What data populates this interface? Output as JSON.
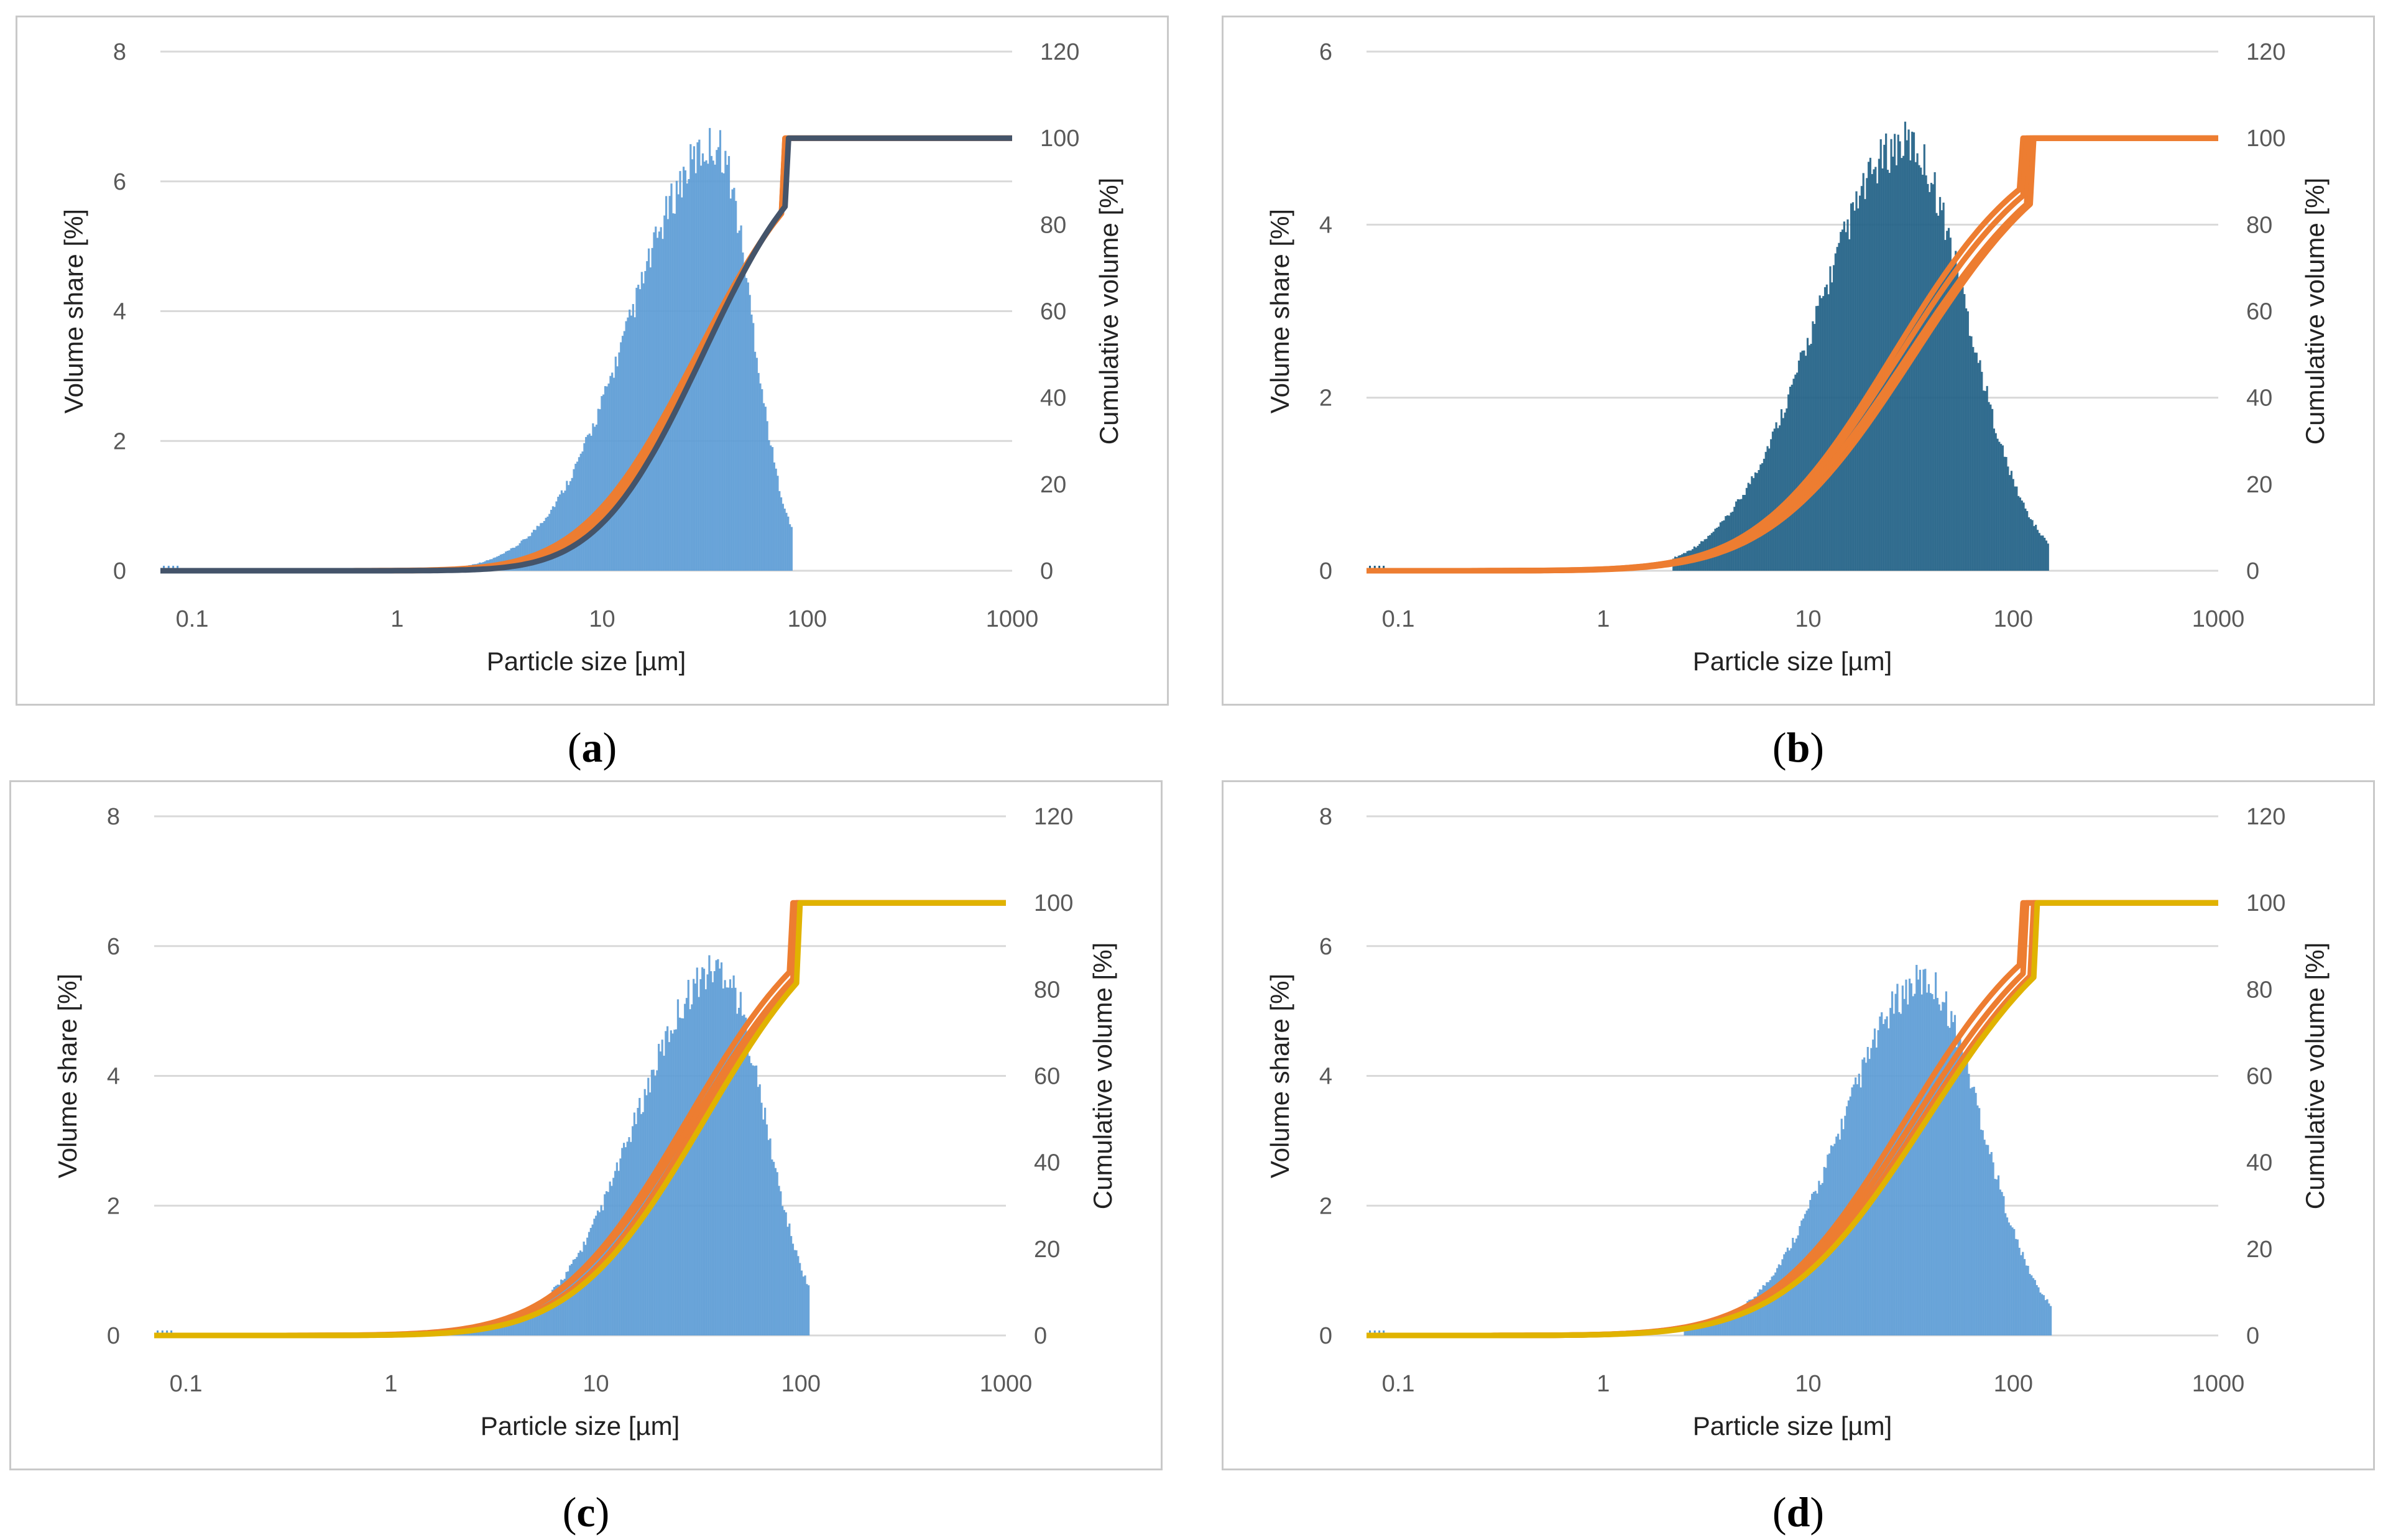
{
  "colors": {
    "bar_light": "#5b9bd5",
    "bar_dark": "#1f5f85",
    "cum_orange": "#ed7d31",
    "cum_yellow": "#e0b300",
    "cum_navy": "#44546a",
    "grid": "#d9d9d9"
  },
  "chart_data": [
    {
      "id": "a",
      "type": "bar+line",
      "caption_letter": "a",
      "xlabel": "Particle size [µm]",
      "ylabel_left": "Volume share [%]",
      "ylabel_right": "Cumulative volume [%]",
      "x_scale": "log",
      "xlim": [
        0.07,
        1000
      ],
      "x_ticks": [
        "0.1",
        "1",
        "10",
        "100",
        "1000"
      ],
      "ylim_left": [
        0,
        8
      ],
      "y_ticks_left": [
        "0",
        "2",
        "4",
        "6",
        "8"
      ],
      "ylim_right": [
        0,
        120
      ],
      "y_ticks_right": [
        "0",
        "20",
        "40",
        "60",
        "80",
        "100",
        "120"
      ],
      "distribution": {
        "mode_um": 36,
        "peak_pct": 6.9,
        "sigma_left": 0.62,
        "sigma_right": 0.26,
        "min_um": 2.0,
        "max_um": 85
      },
      "cumulative_series": [
        {
          "name": "orange-1",
          "color": "cum_orange",
          "d50_um": 30,
          "sigma": 0.42,
          "end_um": 75
        },
        {
          "name": "orange-2",
          "color": "cum_orange",
          "d50_um": 29,
          "sigma": 0.44,
          "end_um": 75
        },
        {
          "name": "navy-1",
          "color": "cum_navy",
          "d50_um": 31,
          "sigma": 0.4,
          "end_um": 78
        }
      ]
    },
    {
      "id": "b",
      "type": "bar+line",
      "caption_letter": "b",
      "xlabel": "Particle size [µm]",
      "ylabel_left": "Volume share [%]",
      "ylabel_right": "Cumulative volume [%]",
      "x_scale": "log",
      "xlim": [
        0.07,
        1000
      ],
      "x_ticks": [
        "0.1",
        "1",
        "10",
        "100",
        "1000"
      ],
      "ylim_left": [
        0,
        6
      ],
      "y_ticks_left": [
        "0",
        "2",
        "4",
        "6"
      ],
      "ylim_right": [
        0,
        120
      ],
      "y_ticks_right": [
        "0",
        "20",
        "40",
        "60",
        "80",
        "100",
        "120"
      ],
      "distribution": {
        "mode_um": 30,
        "peak_pct": 5.2,
        "sigma_left": 0.65,
        "sigma_right": 0.45,
        "min_um": 2.2,
        "max_um": 150
      },
      "cumulative_series": [
        {
          "name": "orange-1",
          "color": "cum_orange",
          "d50_um": 26,
          "sigma": 0.52,
          "end_um": 110
        },
        {
          "name": "orange-2",
          "color": "cum_orange",
          "d50_um": 28,
          "sigma": 0.54,
          "end_um": 115
        },
        {
          "name": "orange-3",
          "color": "cum_orange",
          "d50_um": 31,
          "sigma": 0.56,
          "end_um": 120
        },
        {
          "name": "orange-4",
          "color": "cum_orange",
          "d50_um": 33,
          "sigma": 0.55,
          "end_um": 125
        }
      ]
    },
    {
      "id": "c",
      "type": "bar+line",
      "caption_letter": "c",
      "xlabel": "Particle size [µm]",
      "ylabel_left": "Volume share [%]",
      "ylabel_right": "Cumulative volume [%]",
      "x_scale": "log",
      "xlim": [
        0.07,
        1000
      ],
      "x_ticks": [
        "0.1",
        "1",
        "10",
        "100",
        "1000"
      ],
      "ylim_left": [
        0,
        8
      ],
      "y_ticks_left": [
        "0",
        "2",
        "4",
        "6",
        "8"
      ],
      "ylim_right": [
        0,
        120
      ],
      "y_ticks_right": [
        "0",
        "20",
        "40",
        "60",
        "80",
        "100",
        "120"
      ],
      "distribution": {
        "mode_um": 40,
        "peak_pct": 5.95,
        "sigma_left": 0.6,
        "sigma_right": 0.33,
        "min_um": 1.5,
        "max_um": 110
      },
      "cumulative_series": [
        {
          "name": "orange-1",
          "color": "cum_orange",
          "d50_um": 28,
          "sigma": 0.5,
          "end_um": 90
        },
        {
          "name": "orange-2",
          "color": "cum_orange",
          "d50_um": 30,
          "sigma": 0.52,
          "end_um": 92
        },
        {
          "name": "orange-3",
          "color": "cum_orange",
          "d50_um": 32,
          "sigma": 0.5,
          "end_um": 95
        },
        {
          "name": "yellow-1",
          "color": "cum_yellow",
          "d50_um": 34,
          "sigma": 0.5,
          "end_um": 98
        }
      ]
    },
    {
      "id": "d",
      "type": "bar+line",
      "caption_letter": "d",
      "xlabel": "Particle size [µm]",
      "ylabel_left": "Volume share [%]",
      "ylabel_right": "Cumulative volume [%]",
      "x_scale": "log",
      "xlim": [
        0.07,
        1000
      ],
      "x_ticks": [
        "0.1",
        "1",
        "10",
        "100",
        "1000"
      ],
      "ylim_left": [
        0,
        8
      ],
      "y_ticks_left": [
        "0",
        "2",
        "4",
        "6",
        "8"
      ],
      "ylim_right": [
        0,
        120
      ],
      "y_ticks_right": [
        "0",
        "20",
        "40",
        "60",
        "80",
        "100",
        "120"
      ],
      "distribution": {
        "mode_um": 37,
        "peak_pct": 5.75,
        "sigma_left": 0.6,
        "sigma_right": 0.42,
        "min_um": 2.5,
        "max_um": 155
      },
      "cumulative_series": [
        {
          "name": "orange-1",
          "color": "cum_orange",
          "d50_um": 30,
          "sigma": 0.52,
          "end_um": 110
        },
        {
          "name": "orange-2",
          "color": "cum_orange",
          "d50_um": 33,
          "sigma": 0.54,
          "end_um": 115
        },
        {
          "name": "orange-3",
          "color": "cum_orange",
          "d50_um": 36,
          "sigma": 0.55,
          "end_um": 125
        },
        {
          "name": "yellow-1",
          "color": "cum_yellow",
          "d50_um": 38,
          "sigma": 0.55,
          "end_um": 130
        }
      ]
    }
  ]
}
